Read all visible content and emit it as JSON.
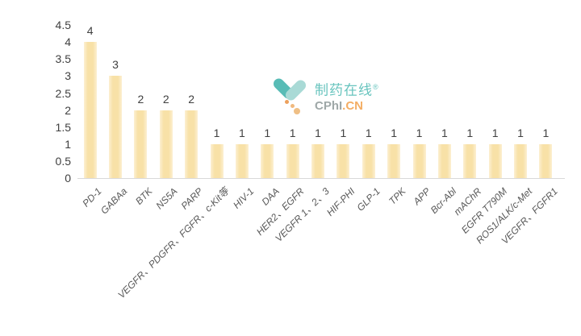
{
  "chart_data": {
    "type": "bar",
    "title": "",
    "xlabel": "",
    "ylabel": "",
    "categories": [
      "PD-1",
      "GABAa",
      "BTK",
      "NS5A",
      "PARP",
      "VEGFR、PDGFR、FGFR、c-Kit等",
      "HIV-1",
      "DAA",
      "HER2、EGFR",
      "VEGFR 1、2、3",
      "HIF-PHI",
      "GLP-1",
      "TPK",
      "APP",
      "Bcr-Abl",
      "mAChR",
      "EGFR T790M",
      "ROS1/ALK/c-Met",
      "VEGFR、FGFR1"
    ],
    "values": [
      4,
      3,
      2,
      2,
      2,
      1,
      1,
      1,
      1,
      1,
      1,
      1,
      1,
      1,
      1,
      1,
      1,
      1,
      1
    ],
    "value_labels_shown": true,
    "yticks": [
      0,
      0.5,
      1,
      1.5,
      2,
      2.5,
      3,
      3.5,
      4,
      4.5
    ],
    "ylim": [
      0,
      4.5
    ],
    "grid": false,
    "legend_position": "none",
    "bar_color": "#F8E1A7",
    "axis_line_color": "#D9D9D9",
    "tick_label_color": "#3F3F3F",
    "category_label_color": "#595959"
  },
  "watermark": {
    "icon": "pill-capsule-icon",
    "brand_cn": "制药在线",
    "reg_mark": "®",
    "brand_en_gray": "CPhI",
    "brand_en_orange": ".CN",
    "colors": {
      "teal": "#68C4BE",
      "teal_light": "#A9DAD6",
      "teal_dark": "#58BCB6",
      "gray": "#9FA8A8",
      "orange": "#F4AE65"
    }
  }
}
